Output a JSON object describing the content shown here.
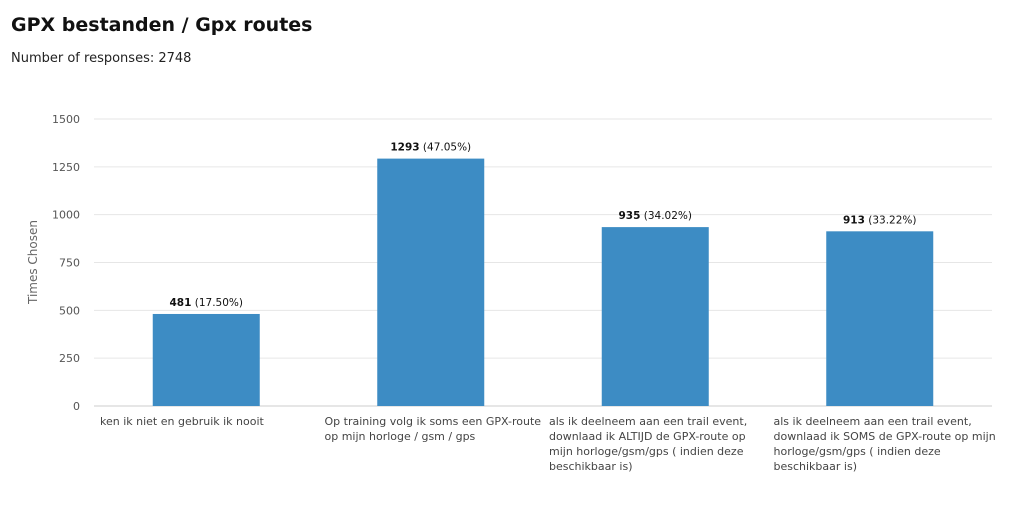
{
  "header": {
    "title": "GPX bestanden / Gpx routes",
    "responses": "Number of responses: 2748"
  },
  "chart_data": {
    "type": "bar",
    "ylabel": "Times Chosen",
    "ylim": [
      0,
      1500
    ],
    "yticks": [
      0,
      250,
      500,
      750,
      1000,
      1250,
      1500
    ],
    "grid": true,
    "bar_color": "#3d8cc4",
    "categories": [
      "ken ik niet en gebruik ik nooit",
      "Op training volg ik soms een GPX-route op mijn horloge / gsm / gps",
      "als ik deelneem aan een trail event, downlaad ik  ALTIJD de GPX-route op mijn horloge/gsm/gps  ( indien deze beschikbaar is)",
      "als ik deelneem aan een trail event, downlaad ik  SOMS de GPX-route op mijn horloge/gsm/gps  ( indien deze beschikbaar is)"
    ],
    "category_lines": [
      [
        "ken ik niet en gebruik ik nooit"
      ],
      [
        "Op training volg ik soms een GPX-route",
        "op mijn horloge / gsm / gps"
      ],
      [
        "als ik deelneem aan een trail event,",
        "downlaad ik  ALTIJD de GPX-route op",
        "mijn horloge/gsm/gps  ( indien deze",
        "beschikbaar is)"
      ],
      [
        "als ik deelneem aan een trail event,",
        "downlaad ik  SOMS de GPX-route op mijn",
        "horloge/gsm/gps  ( indien deze",
        "beschikbaar is)"
      ]
    ],
    "values": [
      481,
      1293,
      935,
      913
    ],
    "percent_labels": [
      "(17.50%)",
      "(47.05%)",
      "(34.02%)",
      "(33.22%)"
    ]
  }
}
